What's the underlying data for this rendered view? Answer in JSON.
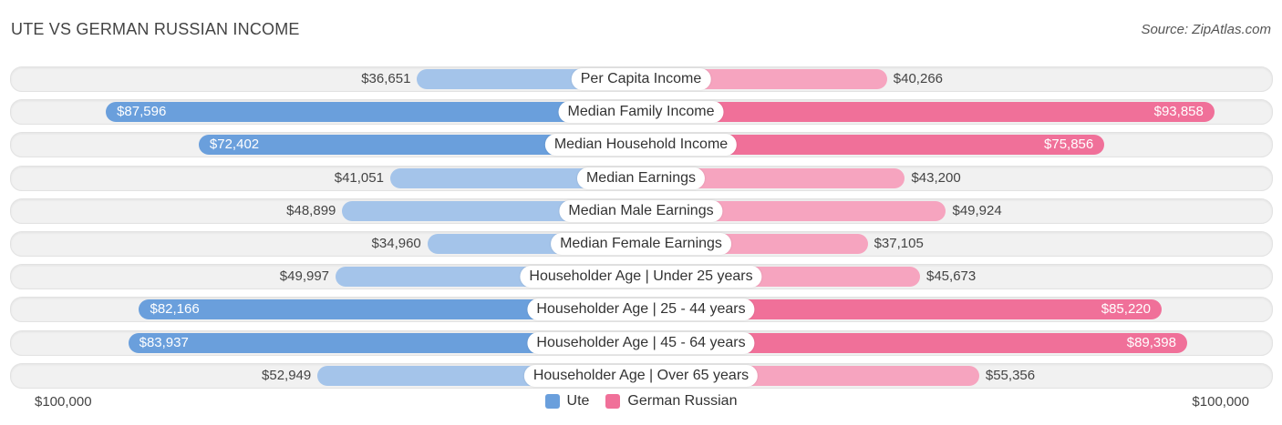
{
  "header": {
    "title": "UTE VS GERMAN RUSSIAN INCOME",
    "source": "Source: ZipAtlas.com"
  },
  "chart_data": {
    "type": "bar",
    "orientation": "horizontal-diverging",
    "title": "UTE VS GERMAN RUSSIAN INCOME",
    "categories": [
      "Per Capita Income",
      "Median Family Income",
      "Median Household Income",
      "Median Earnings",
      "Median Male Earnings",
      "Median Female Earnings",
      "Householder Age | Under 25 years",
      "Householder Age | 25 - 44 years",
      "Householder Age | 45 - 64 years",
      "Householder Age | Over 65 years"
    ],
    "series": [
      {
        "name": "Ute",
        "values": [
          36651,
          87596,
          72402,
          41051,
          48899,
          34960,
          49997,
          82166,
          83937,
          52949
        ],
        "labels": [
          "$36,651",
          "$87,596",
          "$72,402",
          "$41,051",
          "$48,899",
          "$34,960",
          "$49,997",
          "$82,166",
          "$83,937",
          "$52,949"
        ]
      },
      {
        "name": "German Russian",
        "values": [
          40266,
          93858,
          75856,
          43200,
          49924,
          37105,
          45673,
          85220,
          89398,
          55356
        ],
        "labels": [
          "$40,266",
          "$93,858",
          "$75,856",
          "$43,200",
          "$49,924",
          "$37,105",
          "$45,673",
          "$85,220",
          "$89,398",
          "$55,356"
        ]
      }
    ],
    "axis": {
      "max": 100000,
      "left_label": "$100,000",
      "right_label": "$100,000"
    },
    "legend_position": "bottom-center",
    "colors": {
      "ute_strong": "#6a9fdc",
      "ute_light": "#a4c4ea",
      "german_russian_strong": "#f07099",
      "german_russian_light": "#f6a4bf"
    }
  },
  "legend": [
    {
      "name": "Ute",
      "color": "#6a9fdc"
    },
    {
      "name": "German Russian",
      "color": "#f07099"
    }
  ]
}
